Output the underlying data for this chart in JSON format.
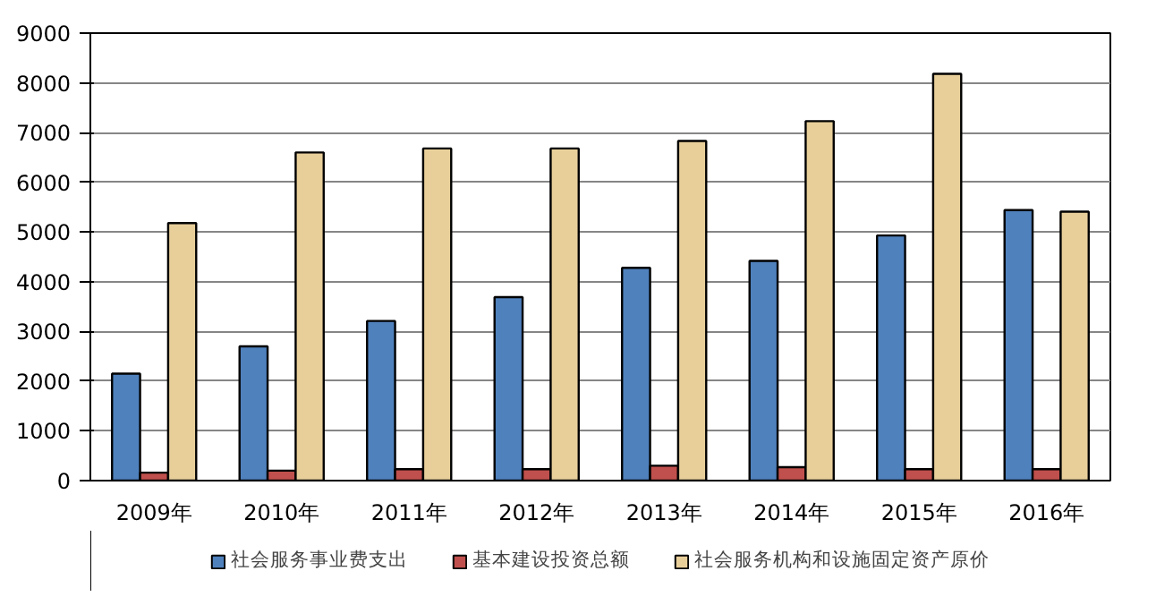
{
  "chart_data": {
    "type": "bar",
    "categories": [
      "2009年",
      "2010年",
      "2011年",
      "2012年",
      "2013年",
      "2014年",
      "2015年",
      "2016年"
    ],
    "series": [
      {
        "name": "社会服务事业费支出",
        "color": "#4f81bd",
        "values": [
          2150,
          2700,
          3210,
          3690,
          4280,
          4420,
          4930,
          5440
        ]
      },
      {
        "name": "基本建设投资总额",
        "color": "#c0504d",
        "values": [
          160,
          200,
          230,
          230,
          300,
          270,
          230,
          230
        ]
      },
      {
        "name": "社会服务机构和设施固定资产原价",
        "color": "#e8cf9a",
        "values": [
          5180,
          6600,
          6680,
          6680,
          6830,
          7230,
          8180,
          5410
        ]
      }
    ],
    "ylim": [
      0,
      9000
    ],
    "yticks": [
      0,
      1000,
      2000,
      3000,
      4000,
      5000,
      6000,
      7000,
      8000,
      9000
    ],
    "grid": "y",
    "legend": "bottom"
  }
}
